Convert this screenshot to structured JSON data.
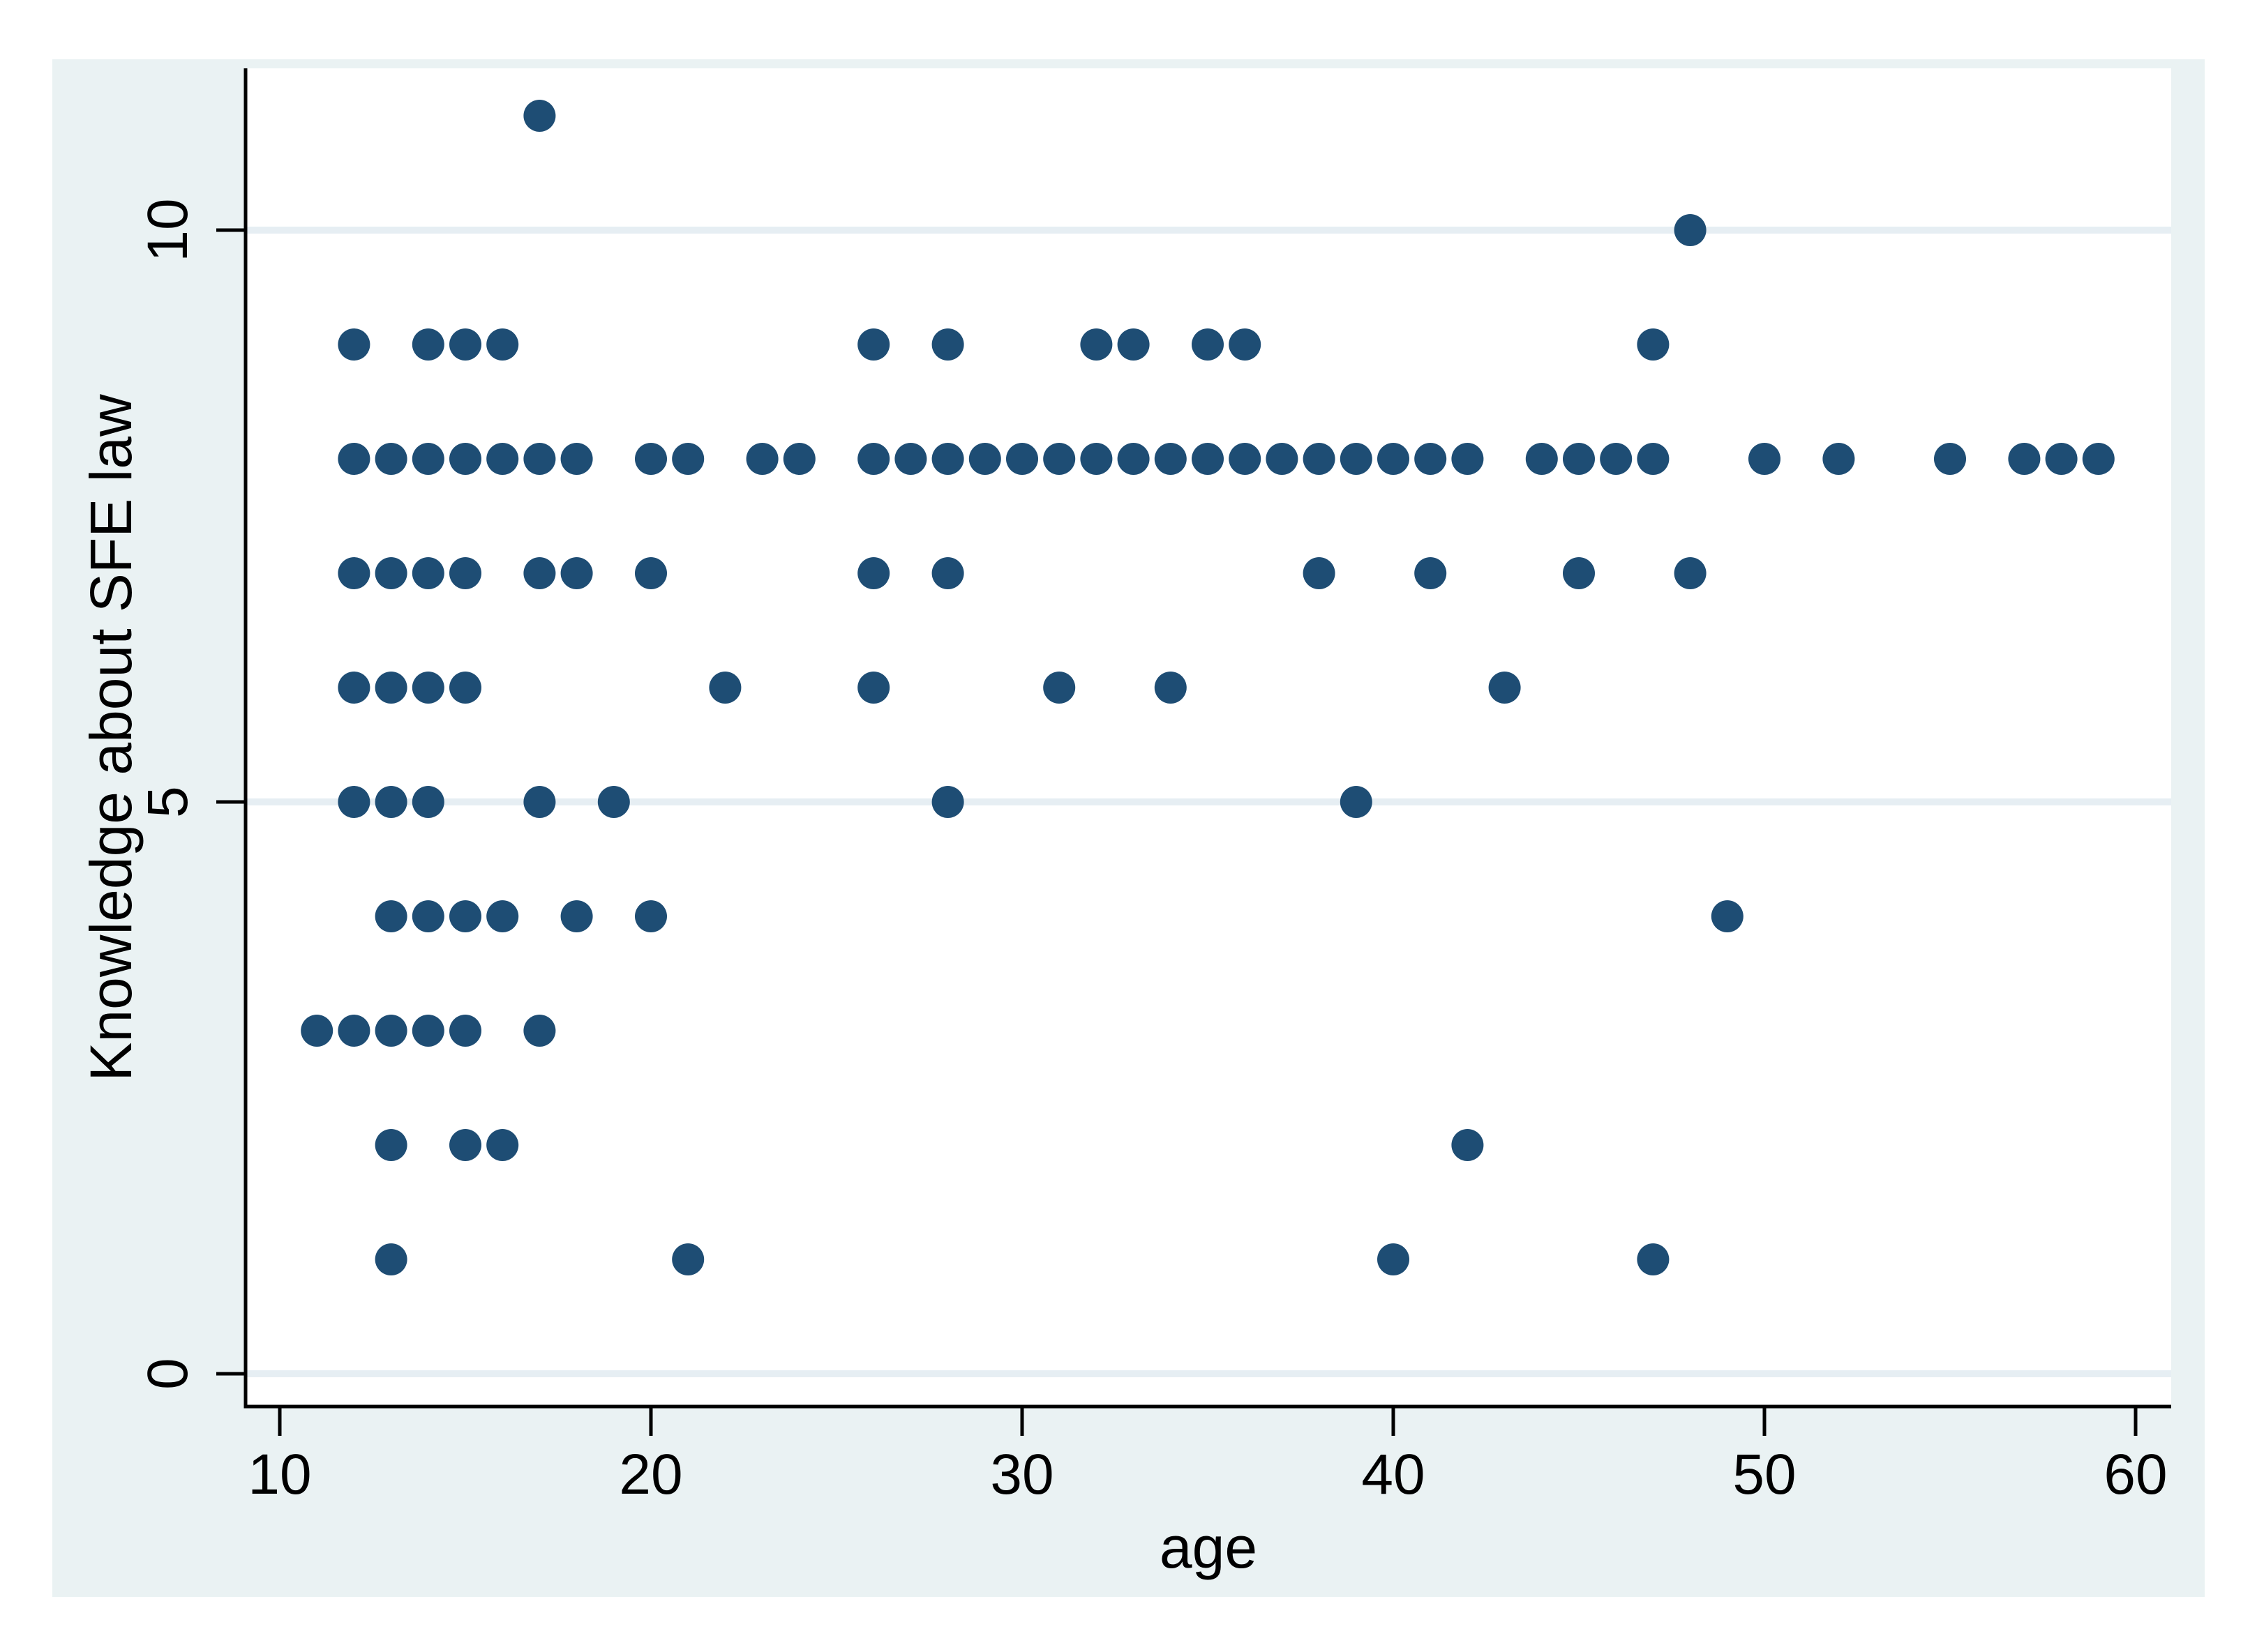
{
  "figure": {
    "page_background": "#ffffff",
    "graph_region_color": "#eaf2f3",
    "plot_region_color": "#ffffff",
    "axis_color": "#000000",
    "gridline_color": "#e6eef3",
    "marker_color": "#1e4d74"
  },
  "chart_data": {
    "type": "scatter",
    "title": "",
    "xlabel": "age",
    "ylabel": "Knowledge about SFE law",
    "x_ticks": [
      10,
      20,
      30,
      40,
      50,
      60
    ],
    "y_ticks": [
      0,
      5,
      10
    ],
    "xlim": [
      9.1,
      61.0
    ],
    "ylim": [
      -0.3,
      11.4
    ],
    "grid": "horizontal gridlines at y ticks",
    "legend": "none",
    "marker_shape": "circle",
    "points": [
      [
        17,
        11
      ],
      [
        48,
        10
      ],
      [
        12,
        9
      ],
      [
        14,
        9
      ],
      [
        15,
        9
      ],
      [
        16,
        9
      ],
      [
        26,
        9
      ],
      [
        28,
        9
      ],
      [
        32,
        9
      ],
      [
        33,
        9
      ],
      [
        35,
        9
      ],
      [
        36,
        9
      ],
      [
        47,
        9
      ],
      [
        12,
        8
      ],
      [
        13,
        8
      ],
      [
        14,
        8
      ],
      [
        15,
        8
      ],
      [
        16,
        8
      ],
      [
        17,
        8
      ],
      [
        18,
        8
      ],
      [
        20,
        8
      ],
      [
        21,
        8
      ],
      [
        23,
        8
      ],
      [
        24,
        8
      ],
      [
        26,
        8
      ],
      [
        27,
        8
      ],
      [
        28,
        8
      ],
      [
        29,
        8
      ],
      [
        30,
        8
      ],
      [
        31,
        8
      ],
      [
        32,
        8
      ],
      [
        33,
        8
      ],
      [
        34,
        8
      ],
      [
        35,
        8
      ],
      [
        36,
        8
      ],
      [
        37,
        8
      ],
      [
        38,
        8
      ],
      [
        39,
        8
      ],
      [
        40,
        8
      ],
      [
        41,
        8
      ],
      [
        42,
        8
      ],
      [
        44,
        8
      ],
      [
        45,
        8
      ],
      [
        46,
        8
      ],
      [
        47,
        8
      ],
      [
        50,
        8
      ],
      [
        52,
        8
      ],
      [
        55,
        8
      ],
      [
        57,
        8
      ],
      [
        58,
        8
      ],
      [
        59,
        8
      ],
      [
        12,
        7
      ],
      [
        13,
        7
      ],
      [
        14,
        7
      ],
      [
        15,
        7
      ],
      [
        17,
        7
      ],
      [
        18,
        7
      ],
      [
        20,
        7
      ],
      [
        26,
        7
      ],
      [
        28,
        7
      ],
      [
        38,
        7
      ],
      [
        41,
        7
      ],
      [
        45,
        7
      ],
      [
        48,
        7
      ],
      [
        12,
        6
      ],
      [
        13,
        6
      ],
      [
        14,
        6
      ],
      [
        15,
        6
      ],
      [
        22,
        6
      ],
      [
        26,
        6
      ],
      [
        31,
        6
      ],
      [
        34,
        6
      ],
      [
        43,
        6
      ],
      [
        12,
        5
      ],
      [
        13,
        5
      ],
      [
        14,
        5
      ],
      [
        17,
        5
      ],
      [
        19,
        5
      ],
      [
        28,
        5
      ],
      [
        39,
        5
      ],
      [
        13,
        4
      ],
      [
        14,
        4
      ],
      [
        15,
        4
      ],
      [
        16,
        4
      ],
      [
        18,
        4
      ],
      [
        20,
        4
      ],
      [
        49,
        4
      ],
      [
        11,
        3
      ],
      [
        12,
        3
      ],
      [
        13,
        3
      ],
      [
        14,
        3
      ],
      [
        15,
        3
      ],
      [
        17,
        3
      ],
      [
        13,
        2
      ],
      [
        15,
        2
      ],
      [
        16,
        2
      ],
      [
        42,
        2
      ],
      [
        13,
        1
      ],
      [
        21,
        1
      ],
      [
        40,
        1
      ],
      [
        47,
        1
      ]
    ]
  }
}
